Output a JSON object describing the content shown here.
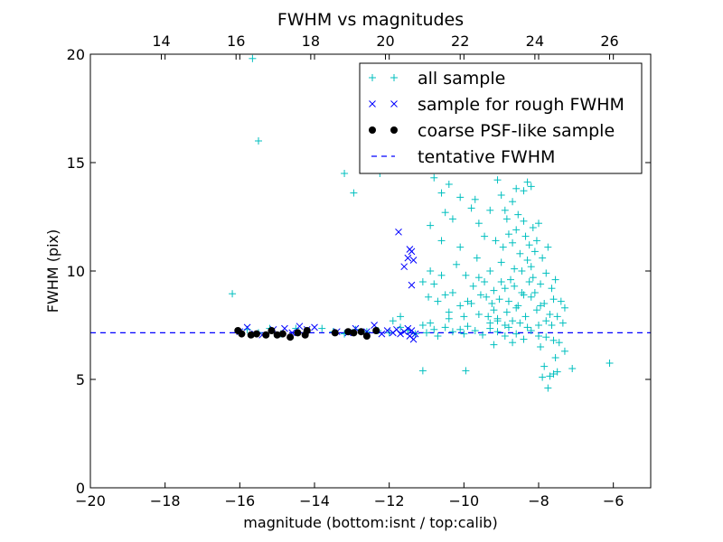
{
  "chart_data": {
    "type": "scatter",
    "title": "FWHM vs magnitudes",
    "xlabel": "magnitude (bottom:isnt / top:calib)",
    "ylabel": "FWHM (pix)",
    "xlim": [
      -20,
      -5
    ],
    "ylim": [
      0,
      20
    ],
    "top_xlim": [
      12.1,
      27.1
    ],
    "x_ticks": [
      -20,
      -18,
      -16,
      -14,
      -12,
      -10,
      -8,
      -6
    ],
    "x_tick_labels": [
      "−20",
      "−18",
      "−16",
      "−14",
      "−12",
      "−10",
      "−8",
      "−6"
    ],
    "y_ticks": [
      0,
      5,
      10,
      15,
      20
    ],
    "y_tick_labels": [
      "0",
      "5",
      "10",
      "15",
      "20"
    ],
    "top_ticks": [
      14,
      16,
      18,
      20,
      22,
      24,
      26
    ],
    "top_tick_labels": [
      "14",
      "16",
      "18",
      "20",
      "22",
      "24",
      "26"
    ],
    "grid": false,
    "legend_position": "top-right",
    "series": [
      {
        "name": "all sample",
        "marker": "plus",
        "color": "#00bfbf",
        "points": [
          [
            -15.66,
            19.8
          ],
          [
            -16.2,
            8.95
          ],
          [
            -15.5,
            16.0
          ],
          [
            -13.2,
            14.5
          ],
          [
            -12.95,
            13.6
          ],
          [
            -12.25,
            14.5
          ],
          [
            -15.8,
            7.3
          ],
          [
            -15.5,
            7.15
          ],
          [
            -15.2,
            7.35
          ],
          [
            -14.9,
            7.1
          ],
          [
            -14.5,
            7.35
          ],
          [
            -14.2,
            7.2
          ],
          [
            -13.8,
            7.35
          ],
          [
            -13.5,
            7.2
          ],
          [
            -13.2,
            7.1
          ],
          [
            -12.9,
            7.3
          ],
          [
            -12.6,
            7.2
          ],
          [
            -12.3,
            7.25
          ],
          [
            -12.0,
            7.15
          ],
          [
            -11.7,
            7.4
          ],
          [
            -11.5,
            7.25
          ],
          [
            -11.3,
            7.1
          ],
          [
            -11.1,
            7.5
          ],
          [
            -11.0,
            7.15
          ],
          [
            -10.8,
            7.3
          ],
          [
            -10.7,
            7.0
          ],
          [
            -10.5,
            7.4
          ],
          [
            -10.3,
            7.2
          ],
          [
            -10.1,
            7.3
          ],
          [
            -10.0,
            7.1
          ],
          [
            -9.9,
            7.45
          ],
          [
            -9.7,
            7.25
          ],
          [
            -9.5,
            7.05
          ],
          [
            -9.3,
            7.35
          ],
          [
            -9.1,
            7.2
          ],
          [
            -8.9,
            7.0
          ],
          [
            -8.8,
            7.4
          ],
          [
            -8.6,
            7.1
          ],
          [
            -8.4,
            6.85
          ],
          [
            -8.2,
            7.25
          ],
          [
            -8.0,
            7.0
          ],
          [
            -7.8,
            6.95
          ],
          [
            -7.6,
            6.8
          ],
          [
            -11.9,
            7.7
          ],
          [
            -11.7,
            7.9
          ],
          [
            -11.1,
            5.4
          ],
          [
            -10.9,
            7.6
          ],
          [
            -10.4,
            7.8
          ],
          [
            -9.95,
            5.4
          ],
          [
            -9.2,
            6.6
          ],
          [
            -8.7,
            6.7
          ],
          [
            -7.95,
            6.5
          ],
          [
            -7.85,
            5.6
          ],
          [
            -7.7,
            5.15
          ],
          [
            -7.6,
            5.25
          ],
          [
            -7.5,
            5.35
          ],
          [
            -7.3,
            6.3
          ],
          [
            -7.1,
            5.5
          ],
          [
            -6.1,
            5.75
          ],
          [
            -7.75,
            4.6
          ],
          [
            -7.9,
            5.1
          ],
          [
            -7.55,
            6.0
          ],
          [
            -7.45,
            6.7
          ],
          [
            -7.35,
            7.6
          ],
          [
            -7.65,
            7.5
          ],
          [
            -10.8,
            14.3
          ],
          [
            -10.6,
            13.6
          ],
          [
            -10.4,
            14.0
          ],
          [
            -10.1,
            13.4
          ],
          [
            -10.5,
            12.7
          ],
          [
            -10.9,
            12.1
          ],
          [
            -10.6,
            11.4
          ],
          [
            -10.1,
            11.1
          ],
          [
            -10.3,
            12.4
          ],
          [
            -9.8,
            12.9
          ],
          [
            -9.7,
            13.3
          ],
          [
            -9.6,
            12.2
          ],
          [
            -9.45,
            11.6
          ],
          [
            -9.3,
            12.8
          ],
          [
            -9.1,
            14.2
          ],
          [
            -9.0,
            13.5
          ],
          [
            -8.9,
            14.7
          ],
          [
            -8.85,
            12.4
          ],
          [
            -8.6,
            13.8
          ],
          [
            -8.4,
            13.7
          ],
          [
            -8.3,
            14.1
          ],
          [
            -8.2,
            13.9
          ],
          [
            -8.7,
            13.2
          ],
          [
            -10.9,
            10.0
          ],
          [
            -10.8,
            9.4
          ],
          [
            -10.7,
            8.6
          ],
          [
            -10.5,
            8.9
          ],
          [
            -10.3,
            9.0
          ],
          [
            -10.1,
            8.4
          ],
          [
            -10.2,
            10.3
          ],
          [
            -9.95,
            9.8
          ],
          [
            -9.9,
            8.6
          ],
          [
            -9.75,
            9.3
          ],
          [
            -9.65,
            10.6
          ],
          [
            -9.6,
            8.0
          ],
          [
            -9.55,
            8.9
          ],
          [
            -9.45,
            9.5
          ],
          [
            -9.35,
            7.9
          ],
          [
            -9.3,
            10.0
          ],
          [
            -9.25,
            8.5
          ],
          [
            -9.2,
            9.1
          ],
          [
            -9.15,
            11.4
          ],
          [
            -9.1,
            7.8
          ],
          [
            -9.05,
            8.7
          ],
          [
            -9.0,
            10.4
          ],
          [
            -8.95,
            11.1
          ],
          [
            -8.9,
            9.2
          ],
          [
            -8.85,
            8.1
          ],
          [
            -8.8,
            11.7
          ],
          [
            -8.75,
            9.6
          ],
          [
            -8.7,
            7.7
          ],
          [
            -8.65,
            10.1
          ],
          [
            -8.6,
            11.9
          ],
          [
            -8.55,
            8.4
          ],
          [
            -8.5,
            10.8
          ],
          [
            -8.45,
            9.0
          ],
          [
            -8.4,
            12.3
          ],
          [
            -8.35,
            7.9
          ],
          [
            -8.3,
            10.5
          ],
          [
            -8.25,
            11.2
          ],
          [
            -8.2,
            8.8
          ],
          [
            -8.15,
            9.7
          ],
          [
            -8.1,
            10.9
          ],
          [
            -8.05,
            8.2
          ],
          [
            -8.0,
            12.2
          ],
          [
            -7.95,
            9.4
          ],
          [
            -7.9,
            10.6
          ],
          [
            -7.85,
            8.5
          ],
          [
            -7.8,
            9.9
          ],
          [
            -7.75,
            11.1
          ],
          [
            -7.7,
            8.0
          ],
          [
            -7.65,
            9.2
          ],
          [
            -7.6,
            8.7
          ],
          [
            -7.55,
            9.6
          ],
          [
            -7.5,
            7.9
          ],
          [
            -7.4,
            8.6
          ],
          [
            -7.3,
            8.3
          ],
          [
            -8.9,
            12.8
          ],
          [
            -8.7,
            11.3
          ],
          [
            -8.55,
            12.6
          ],
          [
            -8.35,
            11.6
          ],
          [
            -8.15,
            12.0
          ],
          [
            -8.05,
            11.4
          ],
          [
            -8.45,
            10.0
          ],
          [
            -8.25,
            9.5
          ],
          [
            -8.1,
            9.0
          ],
          [
            -7.95,
            8.4
          ],
          [
            -8.6,
            8.3
          ],
          [
            -8.8,
            8.6
          ],
          [
            -9.0,
            9.5
          ],
          [
            -9.2,
            8.2
          ],
          [
            -9.4,
            8.8
          ],
          [
            -9.6,
            9.7
          ],
          [
            -9.8,
            8.5
          ],
          [
            -10.0,
            7.9
          ],
          [
            -10.4,
            8.1
          ],
          [
            -10.6,
            9.8
          ],
          [
            -10.95,
            8.8
          ],
          [
            -11.1,
            9.5
          ],
          [
            -8.5,
            7.6
          ],
          [
            -8.3,
            7.4
          ],
          [
            -8.9,
            7.5
          ],
          [
            -9.1,
            7.7
          ],
          [
            -9.3,
            7.6
          ],
          [
            -8.65,
            9.3
          ],
          [
            -8.4,
            8.9
          ],
          [
            -8.2,
            10.2
          ],
          [
            -7.8,
            7.7
          ],
          [
            -8.0,
            7.5
          ]
        ]
      },
      {
        "name": "sample for rough FWHM",
        "marker": "x",
        "color": "#0000ff",
        "points": [
          [
            -16.0,
            7.2
          ],
          [
            -15.8,
            7.4
          ],
          [
            -15.6,
            7.1
          ],
          [
            -15.4,
            7.05
          ],
          [
            -15.1,
            7.3
          ],
          [
            -14.8,
            7.35
          ],
          [
            -14.6,
            7.15
          ],
          [
            -14.4,
            7.45
          ],
          [
            -14.2,
            7.3
          ],
          [
            -14.0,
            7.4
          ],
          [
            -13.4,
            7.2
          ],
          [
            -13.1,
            7.15
          ],
          [
            -12.9,
            7.35
          ],
          [
            -12.6,
            7.2
          ],
          [
            -12.4,
            7.5
          ],
          [
            -12.2,
            7.1
          ],
          [
            -12.05,
            7.25
          ],
          [
            -11.9,
            7.15
          ],
          [
            -11.8,
            7.3
          ],
          [
            -11.7,
            7.1
          ],
          [
            -11.6,
            7.2
          ],
          [
            -11.5,
            7.35
          ],
          [
            -11.45,
            7.0
          ],
          [
            -11.4,
            7.25
          ],
          [
            -11.35,
            6.85
          ],
          [
            -11.3,
            7.1
          ],
          [
            -11.6,
            10.2
          ],
          [
            -11.5,
            10.6
          ],
          [
            -11.45,
            11.0
          ],
          [
            -11.4,
            10.9
          ],
          [
            -11.35,
            10.5
          ],
          [
            -11.75,
            11.8
          ],
          [
            -11.4,
            9.35
          ]
        ]
      },
      {
        "name": "coarse PSF-like sample",
        "marker": "dot",
        "color": "#000000",
        "points": [
          [
            -16.05,
            7.25
          ],
          [
            -15.95,
            7.1
          ],
          [
            -15.7,
            7.05
          ],
          [
            -15.55,
            7.1
          ],
          [
            -15.3,
            7.05
          ],
          [
            -15.15,
            7.25
          ],
          [
            -15.0,
            7.05
          ],
          [
            -14.85,
            7.1
          ],
          [
            -14.65,
            6.95
          ],
          [
            -14.45,
            7.15
          ],
          [
            -14.25,
            7.05
          ],
          [
            -14.2,
            7.25
          ],
          [
            -13.45,
            7.15
          ],
          [
            -13.1,
            7.2
          ],
          [
            -12.95,
            7.15
          ],
          [
            -12.75,
            7.2
          ],
          [
            -12.6,
            7.0
          ],
          [
            -12.35,
            7.25
          ]
        ]
      }
    ],
    "lines": [
      {
        "name": "tentative FWHM",
        "style": "dashed",
        "color": "#0000ff",
        "y": 7.15
      }
    ]
  }
}
